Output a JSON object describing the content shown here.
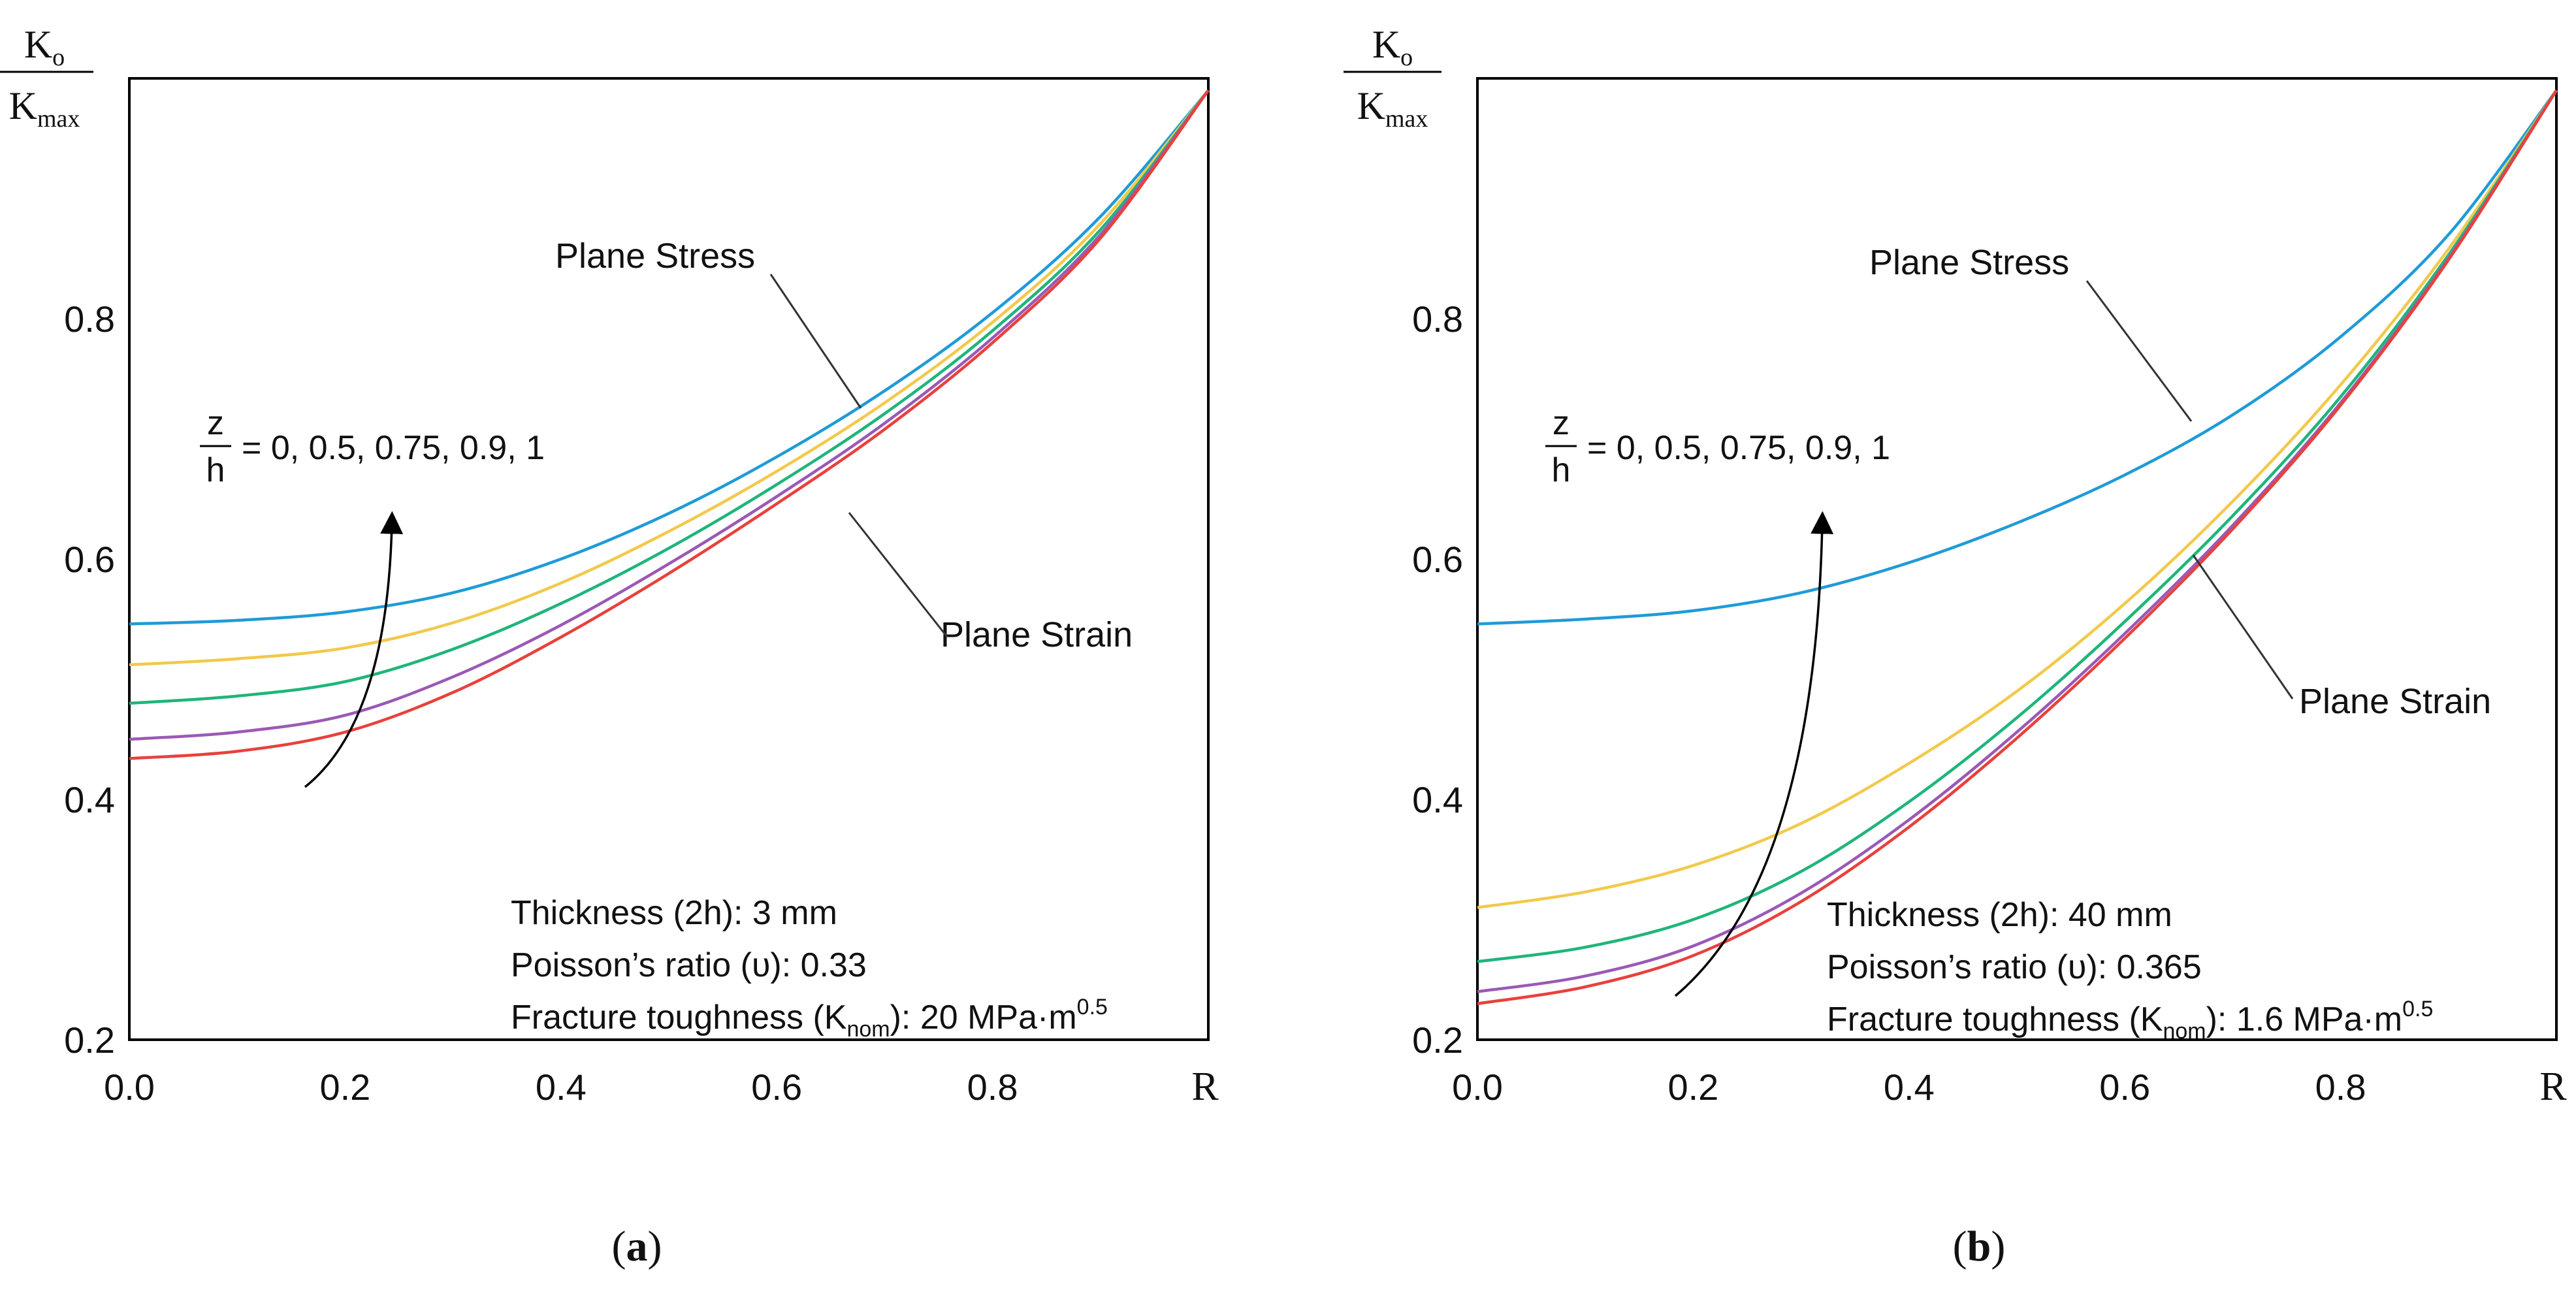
{
  "chart_data": [
    {
      "panel_label": "a",
      "type": "line",
      "ylabel_num": "K",
      "ylabel_num_sub": "o",
      "ylabel_den": "K",
      "ylabel_den_sub": "max",
      "xlabel": "R",
      "xlim": [
        0,
        1
      ],
      "ylim": [
        0.2,
        1.0
      ],
      "xticks": [
        "0.0",
        "0.2",
        "0.4",
        "0.6",
        "0.8"
      ],
      "yticks": [
        "0.2",
        "0.4",
        "0.6",
        "0.8"
      ],
      "series": [
        {
          "color": "#1f9bd7",
          "points": [
            [
              0,
              0.546
            ],
            [
              0.1,
              0.549
            ],
            [
              0.2,
              0.556
            ],
            [
              0.3,
              0.572
            ],
            [
              0.4,
              0.6
            ],
            [
              0.5,
              0.638
            ],
            [
              0.6,
              0.685
            ],
            [
              0.7,
              0.74
            ],
            [
              0.8,
              0.805
            ],
            [
              0.9,
              0.885
            ],
            [
              1.0,
              0.99
            ]
          ]
        },
        {
          "color": "#f2c94c",
          "points": [
            [
              0,
              0.512
            ],
            [
              0.1,
              0.517
            ],
            [
              0.2,
              0.526
            ],
            [
              0.3,
              0.547
            ],
            [
              0.4,
              0.58
            ],
            [
              0.5,
              0.623
            ],
            [
              0.6,
              0.673
            ],
            [
              0.7,
              0.73
            ],
            [
              0.8,
              0.797
            ],
            [
              0.9,
              0.879
            ],
            [
              1.0,
              0.99
            ]
          ]
        },
        {
          "color": "#1fb57a",
          "points": [
            [
              0,
              0.48
            ],
            [
              0.1,
              0.486
            ],
            [
              0.2,
              0.498
            ],
            [
              0.3,
              0.525
            ],
            [
              0.4,
              0.563
            ],
            [
              0.5,
              0.609
            ],
            [
              0.6,
              0.662
            ],
            [
              0.7,
              0.721
            ],
            [
              0.8,
              0.79
            ],
            [
              0.9,
              0.874
            ],
            [
              1.0,
              0.99
            ]
          ]
        },
        {
          "color": "#9b59b6",
          "points": [
            [
              0,
              0.45
            ],
            [
              0.1,
              0.456
            ],
            [
              0.2,
              0.47
            ],
            [
              0.3,
              0.502
            ],
            [
              0.4,
              0.545
            ],
            [
              0.5,
              0.596
            ],
            [
              0.6,
              0.652
            ],
            [
              0.7,
              0.713
            ],
            [
              0.8,
              0.784
            ],
            [
              0.9,
              0.87
            ],
            [
              1.0,
              0.99
            ]
          ]
        },
        {
          "color": "#e8413c",
          "points": [
            [
              0,
              0.434
            ],
            [
              0.1,
              0.44
            ],
            [
              0.2,
              0.456
            ],
            [
              0.3,
              0.489
            ],
            [
              0.4,
              0.535
            ],
            [
              0.5,
              0.588
            ],
            [
              0.6,
              0.646
            ],
            [
              0.7,
              0.708
            ],
            [
              0.8,
              0.78
            ],
            [
              0.9,
              0.867
            ],
            [
              1.0,
              0.99
            ]
          ]
        }
      ],
      "annotations": {
        "plane_stress": "Plane Stress",
        "plane_strain": "Plane Strain",
        "zh_num": "z",
        "zh_den": "h",
        "zh_values": "= 0, 0.5, 0.75, 0.9, 1"
      },
      "info": {
        "thickness": "Thickness (2h): 3 mm",
        "poisson": "Poisson’s ratio (υ): 0.33",
        "fracture_pre": "Fracture toughness (K",
        "fracture_sub": "nom",
        "fracture_post": "): 20 MPa·m",
        "fracture_sup": "0.5"
      }
    },
    {
      "panel_label": "b",
      "type": "line",
      "ylabel_num": "K",
      "ylabel_num_sub": "o",
      "ylabel_den": "K",
      "ylabel_den_sub": "max",
      "xlabel": "R",
      "xlim": [
        0,
        1
      ],
      "ylim": [
        0.2,
        1.0
      ],
      "xticks": [
        "0.0",
        "0.2",
        "0.4",
        "0.6",
        "0.8"
      ],
      "yticks": [
        "0.2",
        "0.4",
        "0.6",
        "0.8"
      ],
      "series": [
        {
          "color": "#1f9bd7",
          "points": [
            [
              0,
              0.546
            ],
            [
              0.1,
              0.55
            ],
            [
              0.2,
              0.557
            ],
            [
              0.3,
              0.572
            ],
            [
              0.4,
              0.597
            ],
            [
              0.5,
              0.63
            ],
            [
              0.6,
              0.67
            ],
            [
              0.7,
              0.72
            ],
            [
              0.8,
              0.785
            ],
            [
              0.9,
              0.87
            ],
            [
              1.0,
              0.99
            ]
          ]
        },
        {
          "color": "#f2c94c",
          "points": [
            [
              0,
              0.31
            ],
            [
              0.1,
              0.323
            ],
            [
              0.2,
              0.345
            ],
            [
              0.3,
              0.38
            ],
            [
              0.4,
              0.43
            ],
            [
              0.5,
              0.49
            ],
            [
              0.6,
              0.563
            ],
            [
              0.7,
              0.648
            ],
            [
              0.8,
              0.745
            ],
            [
              0.9,
              0.858
            ],
            [
              1.0,
              0.99
            ]
          ]
        },
        {
          "color": "#1fb57a",
          "points": [
            [
              0,
              0.265
            ],
            [
              0.1,
              0.277
            ],
            [
              0.2,
              0.3
            ],
            [
              0.3,
              0.34
            ],
            [
              0.4,
              0.398
            ],
            [
              0.5,
              0.468
            ],
            [
              0.6,
              0.548
            ],
            [
              0.7,
              0.636
            ],
            [
              0.8,
              0.735
            ],
            [
              0.9,
              0.853
            ],
            [
              1.0,
              0.99
            ]
          ]
        },
        {
          "color": "#9b59b6",
          "points": [
            [
              0,
              0.24
            ],
            [
              0.1,
              0.253
            ],
            [
              0.2,
              0.278
            ],
            [
              0.3,
              0.322
            ],
            [
              0.4,
              0.383
            ],
            [
              0.5,
              0.456
            ],
            [
              0.6,
              0.538
            ],
            [
              0.7,
              0.628
            ],
            [
              0.8,
              0.73
            ],
            [
              0.9,
              0.85
            ],
            [
              1.0,
              0.99
            ]
          ]
        },
        {
          "color": "#e8413c",
          "points": [
            [
              0,
              0.23
            ],
            [
              0.1,
              0.244
            ],
            [
              0.2,
              0.27
            ],
            [
              0.3,
              0.315
            ],
            [
              0.4,
              0.377
            ],
            [
              0.5,
              0.451
            ],
            [
              0.6,
              0.534
            ],
            [
              0.7,
              0.625
            ],
            [
              0.8,
              0.728
            ],
            [
              0.9,
              0.849
            ],
            [
              1.0,
              0.99
            ]
          ]
        }
      ],
      "annotations": {
        "plane_stress": "Plane Stress",
        "plane_strain": "Plane Strain",
        "zh_num": "z",
        "zh_den": "h",
        "zh_values": "= 0, 0.5, 0.75, 0.9, 1"
      },
      "info": {
        "thickness": "Thickness (2h): 40 mm",
        "poisson": "Poisson’s ratio (υ): 0.365",
        "fracture_pre": "Fracture toughness (K",
        "fracture_sub": "nom",
        "fracture_post": "): 1.6 MPa·m",
        "fracture_sup": "0.5"
      }
    }
  ]
}
